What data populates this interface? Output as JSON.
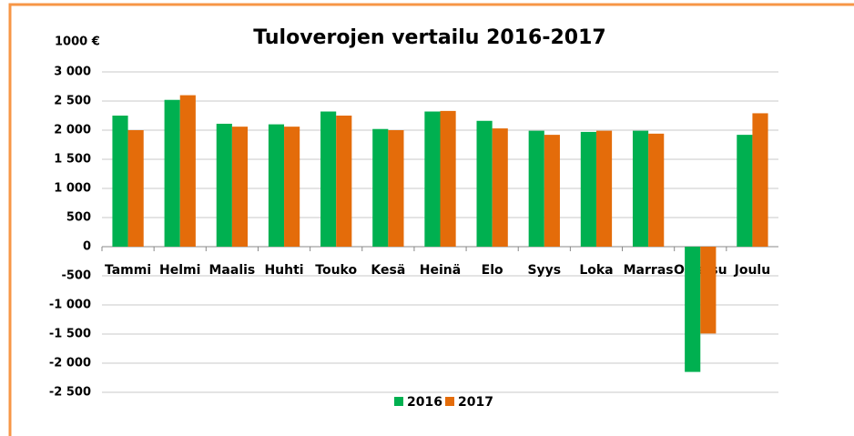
{
  "chart_data": {
    "type": "bar",
    "title": "Tuloverojen vertailu 2016-2017",
    "unit_label": "1000 €",
    "categories": [
      "Tammi",
      "Helmi",
      "Maalis",
      "Huhti",
      "Touko",
      "Kesä",
      "Heinä",
      "Elo",
      "Syys",
      "Loka",
      "Marras",
      "Oikaisu",
      "Joulu"
    ],
    "series": [
      {
        "name": "2016",
        "color": "#00b050",
        "values": [
          2250,
          2520,
          2110,
          2100,
          2320,
          2020,
          2320,
          2160,
          1990,
          1970,
          1990,
          -2150,
          1920
        ]
      },
      {
        "name": "2017",
        "color": "#e46c0a",
        "values": [
          2000,
          2600,
          2060,
          2060,
          2250,
          2000,
          2330,
          2030,
          1920,
          1990,
          1940,
          -1490,
          2290
        ]
      }
    ],
    "ylim": [
      -2500,
      3000
    ],
    "yticks": [
      {
        "value": -2500,
        "label": "-2 500"
      },
      {
        "value": -2000,
        "label": "-2 000"
      },
      {
        "value": -1500,
        "label": "-1 500"
      },
      {
        "value": -1000,
        "label": "-1 000"
      },
      -500,
      0,
      500,
      {
        "value": 1000,
        "label": "1 000"
      },
      {
        "value": 1500,
        "label": "1 500"
      },
      {
        "value": 2000,
        "label": "2 000"
      },
      {
        "value": 2500,
        "label": "2 500"
      },
      {
        "value": 3000,
        "label": "3 000"
      }
    ],
    "grid": true,
    "legend": "bottom"
  }
}
